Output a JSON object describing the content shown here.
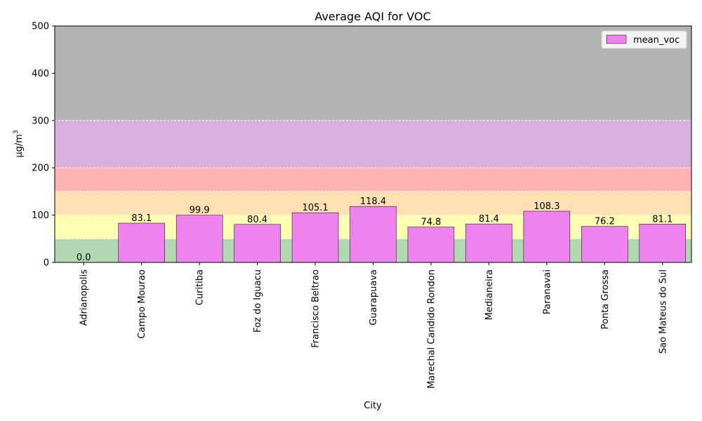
{
  "chart_data": {
    "type": "bar",
    "title": "Average AQI for VOC",
    "xlabel": "City",
    "ylabel": "µg/m",
    "ylabel_superscript": "3",
    "ylim": [
      0,
      500
    ],
    "yticks": [
      0,
      100,
      200,
      300,
      400,
      500
    ],
    "grid": false,
    "legend_position": "top-right",
    "categories": [
      "Adrianopolis",
      "Campo Mourao",
      "Curitiba",
      "Foz do Iguacu",
      "Francisco Beltrao",
      "Guarapuava",
      "Marechal Candido Rondon",
      "Medianeira",
      "Paranavai",
      "Ponta Grossa",
      "Sao Mateus do Sul"
    ],
    "series": [
      {
        "name": "mean_voc",
        "color": "#ee82ee",
        "values": [
          0.0,
          83.1,
          99.9,
          80.4,
          105.1,
          118.4,
          74.8,
          81.4,
          108.3,
          76.2,
          81.1
        ],
        "labels": [
          "0.0",
          "83.1",
          "99.9",
          "80.4",
          "105.1",
          "118.4",
          "74.8",
          "81.4",
          "108.3",
          "76.2",
          "81.1"
        ]
      }
    ],
    "bands": [
      {
        "from": 0,
        "to": 50,
        "color": "#b2d8b2"
      },
      {
        "from": 50,
        "to": 100,
        "color": "#ffffb3"
      },
      {
        "from": 100,
        "to": 150,
        "color": "#ffe0b3"
      },
      {
        "from": 150,
        "to": 200,
        "color": "#ffb3b3"
      },
      {
        "from": 200,
        "to": 300,
        "color": "#d8b0dc"
      },
      {
        "from": 300,
        "to": 500,
        "color": "#b3b3b3"
      }
    ]
  }
}
